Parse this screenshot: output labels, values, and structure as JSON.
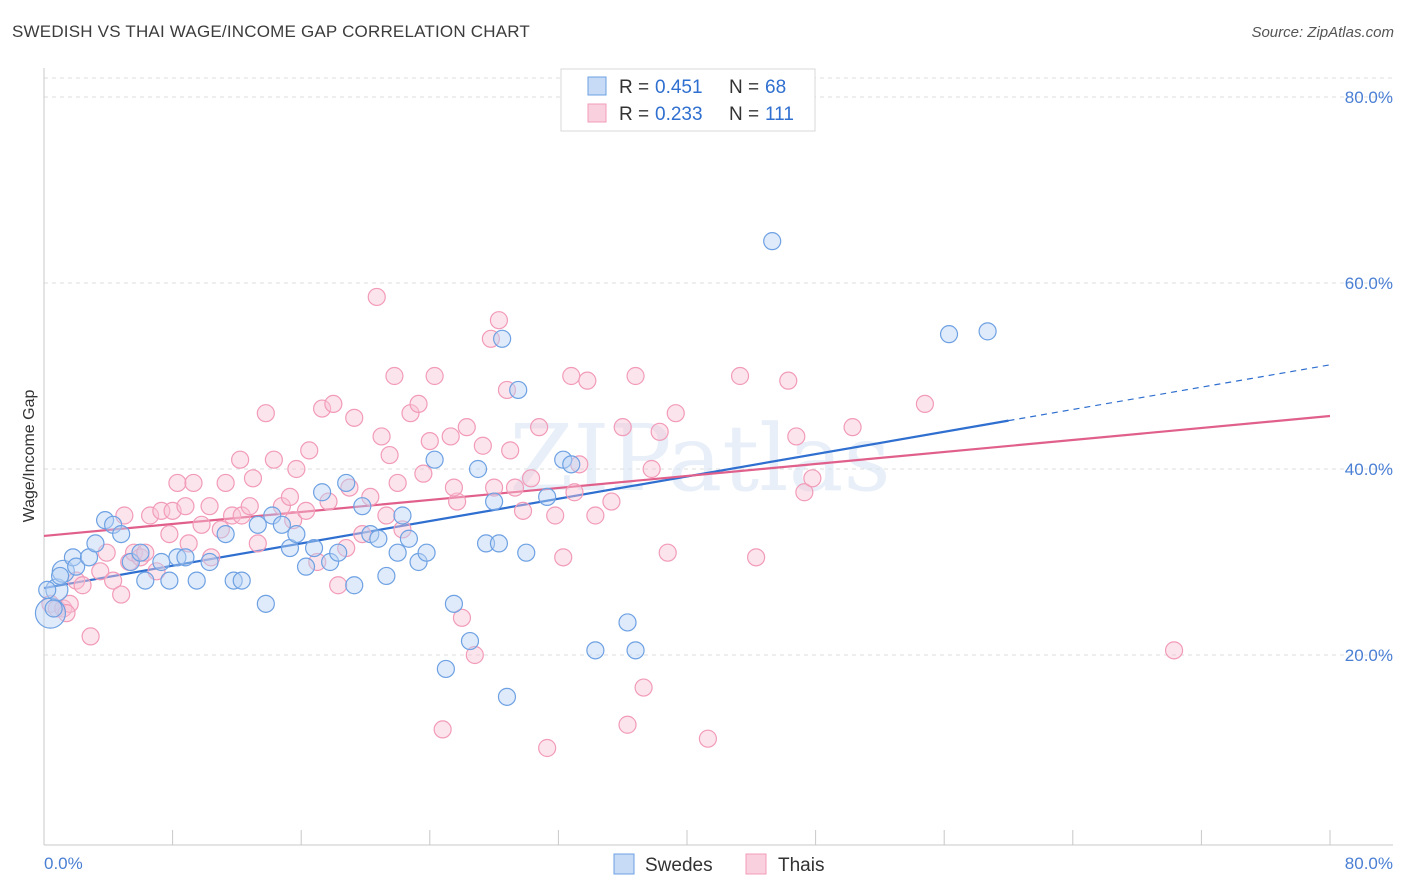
{
  "title": "SWEDISH VS THAI WAGE/INCOME GAP CORRELATION CHART",
  "source": "Source: ZipAtlas.com",
  "watermark": "ZIPatlas",
  "legend_top": [
    {
      "r_label": "R =",
      "r_value": "0.451",
      "n_label": "N =",
      "n_value": "68"
    },
    {
      "r_label": "R =",
      "r_value": "0.233",
      "n_label": "N =",
      "n_value": "111"
    }
  ],
  "chart_data": {
    "type": "scatter",
    "title": "SWEDISH VS THAI WAGE/INCOME GAP CORRELATION CHART",
    "xlabel": "",
    "ylabel": "Wage/Income Gap",
    "xlim": [
      0,
      80
    ],
    "ylim": [
      0,
      85
    ],
    "x_tick_labels": [
      "0.0%",
      "80.0%"
    ],
    "y_ticks": [
      20,
      40,
      60,
      80
    ],
    "y_tick_labels": [
      "20.0%",
      "40.0%",
      "60.0%",
      "80.0%"
    ],
    "grid": true,
    "legend_position": "top-center",
    "series": [
      {
        "name": "Swedes",
        "color": "#6ea1e3",
        "line_color": "#2f6fd0",
        "trend": {
          "x0": 0,
          "y0": 27.2,
          "x1": 60,
          "y1": 45.2,
          "dashed_to_x": 80,
          "dashed_to_y": 51.2
        },
        "points": [
          [
            0.4,
            24.5
          ],
          [
            0.8,
            27
          ],
          [
            1.2,
            29
          ],
          [
            1.8,
            30.5
          ],
          [
            2.0,
            29.5
          ],
          [
            2.8,
            30.5
          ],
          [
            3.2,
            32
          ],
          [
            3.8,
            34.5
          ],
          [
            4.3,
            34
          ],
          [
            4.8,
            33
          ],
          [
            5.4,
            30
          ],
          [
            6.0,
            31
          ],
          [
            6.3,
            28
          ],
          [
            7.3,
            30
          ],
          [
            7.8,
            28
          ],
          [
            8.3,
            30.5
          ],
          [
            8.8,
            30.5
          ],
          [
            9.5,
            28
          ],
          [
            10.3,
            30
          ],
          [
            11.3,
            33
          ],
          [
            11.8,
            28
          ],
          [
            12.3,
            28
          ],
          [
            13.3,
            34
          ],
          [
            13.8,
            25.5
          ],
          [
            14.2,
            35
          ],
          [
            14.8,
            34
          ],
          [
            15.3,
            31.5
          ],
          [
            15.7,
            33
          ],
          [
            16.3,
            29.5
          ],
          [
            16.8,
            31.5
          ],
          [
            17.3,
            37.5
          ],
          [
            17.8,
            30
          ],
          [
            18.3,
            31
          ],
          [
            18.8,
            38.5
          ],
          [
            19.3,
            27.5
          ],
          [
            19.8,
            36
          ],
          [
            20.3,
            33
          ],
          [
            20.8,
            32.5
          ],
          [
            21.3,
            28.5
          ],
          [
            22.0,
            31
          ],
          [
            22.3,
            35
          ],
          [
            22.7,
            32.5
          ],
          [
            23.3,
            30
          ],
          [
            23.8,
            31
          ],
          [
            24.3,
            41
          ],
          [
            25.0,
            18.5
          ],
          [
            25.5,
            25.5
          ],
          [
            26.5,
            21.5
          ],
          [
            27.0,
            40
          ],
          [
            27.5,
            32
          ],
          [
            28.0,
            36.5
          ],
          [
            28.3,
            32
          ],
          [
            28.5,
            54
          ],
          [
            28.8,
            15.5
          ],
          [
            29.5,
            48.5
          ],
          [
            30.0,
            31
          ],
          [
            31.3,
            37
          ],
          [
            32.3,
            41
          ],
          [
            32.8,
            40.5
          ],
          [
            34.3,
            20.5
          ],
          [
            36.3,
            23.5
          ],
          [
            36.8,
            20.5
          ],
          [
            45.3,
            64.5
          ],
          [
            56.3,
            54.5
          ],
          [
            58.7,
            54.8
          ],
          [
            0.2,
            27
          ],
          [
            0.6,
            25
          ],
          [
            1.0,
            28.5
          ]
        ]
      },
      {
        "name": "Thais",
        "color": "#f29bb8",
        "line_color": "#e0608b",
        "trend": {
          "x0": 0,
          "y0": 32.8,
          "x1": 80,
          "y1": 45.7
        },
        "points": [
          [
            0.4,
            25.5
          ],
          [
            0.8,
            25
          ],
          [
            1.2,
            25
          ],
          [
            1.6,
            25.5
          ],
          [
            2.0,
            28
          ],
          [
            2.4,
            27.5
          ],
          [
            2.9,
            22
          ],
          [
            3.5,
            29
          ],
          [
            3.9,
            31
          ],
          [
            4.3,
            28
          ],
          [
            4.8,
            26.5
          ],
          [
            5.3,
            30
          ],
          [
            5.6,
            31
          ],
          [
            6.0,
            30.5
          ],
          [
            6.3,
            31
          ],
          [
            6.6,
            35
          ],
          [
            7.0,
            29
          ],
          [
            7.3,
            35.5
          ],
          [
            7.8,
            33
          ],
          [
            8.0,
            35.5
          ],
          [
            8.3,
            38.5
          ],
          [
            8.8,
            36
          ],
          [
            9.3,
            38.5
          ],
          [
            9.8,
            34
          ],
          [
            10.3,
            36
          ],
          [
            10.4,
            30.5
          ],
          [
            11.0,
            33.5
          ],
          [
            11.3,
            38.5
          ],
          [
            11.7,
            35
          ],
          [
            12.2,
            41
          ],
          [
            12.3,
            35
          ],
          [
            12.8,
            36
          ],
          [
            13.3,
            32
          ],
          [
            13.8,
            46
          ],
          [
            14.3,
            41
          ],
          [
            14.8,
            36
          ],
          [
            15.3,
            37
          ],
          [
            15.5,
            34.5
          ],
          [
            15.7,
            40
          ],
          [
            16.3,
            35.5
          ],
          [
            16.5,
            42
          ],
          [
            17.3,
            46.5
          ],
          [
            17.7,
            36.5
          ],
          [
            18.0,
            47
          ],
          [
            18.3,
            27.5
          ],
          [
            18.8,
            31.5
          ],
          [
            19.0,
            38
          ],
          [
            19.3,
            45.5
          ],
          [
            19.8,
            33
          ],
          [
            20.3,
            37
          ],
          [
            20.7,
            58.5
          ],
          [
            21.0,
            43.5
          ],
          [
            21.3,
            35
          ],
          [
            21.8,
            50
          ],
          [
            22.0,
            38.5
          ],
          [
            22.3,
            33.5
          ],
          [
            22.8,
            46
          ],
          [
            23.3,
            47
          ],
          [
            23.6,
            39.5
          ],
          [
            24.0,
            43
          ],
          [
            24.3,
            50
          ],
          [
            24.8,
            12
          ],
          [
            25.3,
            43.5
          ],
          [
            25.7,
            36.5
          ],
          [
            26.0,
            24
          ],
          [
            26.3,
            44.5
          ],
          [
            26.8,
            20
          ],
          [
            27.3,
            42.5
          ],
          [
            27.8,
            54
          ],
          [
            28.0,
            38
          ],
          [
            28.3,
            56
          ],
          [
            28.8,
            48.5
          ],
          [
            29.3,
            38
          ],
          [
            29.8,
            35.5
          ],
          [
            30.3,
            39
          ],
          [
            30.8,
            44.5
          ],
          [
            31.3,
            10
          ],
          [
            31.8,
            35
          ],
          [
            32.3,
            30.5
          ],
          [
            32.8,
            50
          ],
          [
            33.3,
            40.5
          ],
          [
            33.8,
            49.5
          ],
          [
            34.3,
            35
          ],
          [
            35.3,
            36.5
          ],
          [
            36.0,
            44.5
          ],
          [
            36.3,
            12.5
          ],
          [
            36.8,
            50
          ],
          [
            37.3,
            16.5
          ],
          [
            37.8,
            40
          ],
          [
            38.3,
            44
          ],
          [
            38.8,
            31
          ],
          [
            39.3,
            46
          ],
          [
            41.3,
            11
          ],
          [
            43.3,
            50
          ],
          [
            44.3,
            30.5
          ],
          [
            46.3,
            49.5
          ],
          [
            46.8,
            43.5
          ],
          [
            47.3,
            37.5
          ],
          [
            47.8,
            39
          ],
          [
            50.3,
            44.5
          ],
          [
            54.8,
            47
          ],
          [
            70.3,
            20.5
          ],
          [
            1.4,
            24.5
          ],
          [
            5.0,
            35
          ],
          [
            9.0,
            32
          ],
          [
            13.0,
            39
          ],
          [
            17.0,
            30
          ],
          [
            21.5,
            41.5
          ],
          [
            25.5,
            38
          ],
          [
            29.0,
            42
          ],
          [
            33.0,
            37.5
          ]
        ]
      }
    ]
  }
}
